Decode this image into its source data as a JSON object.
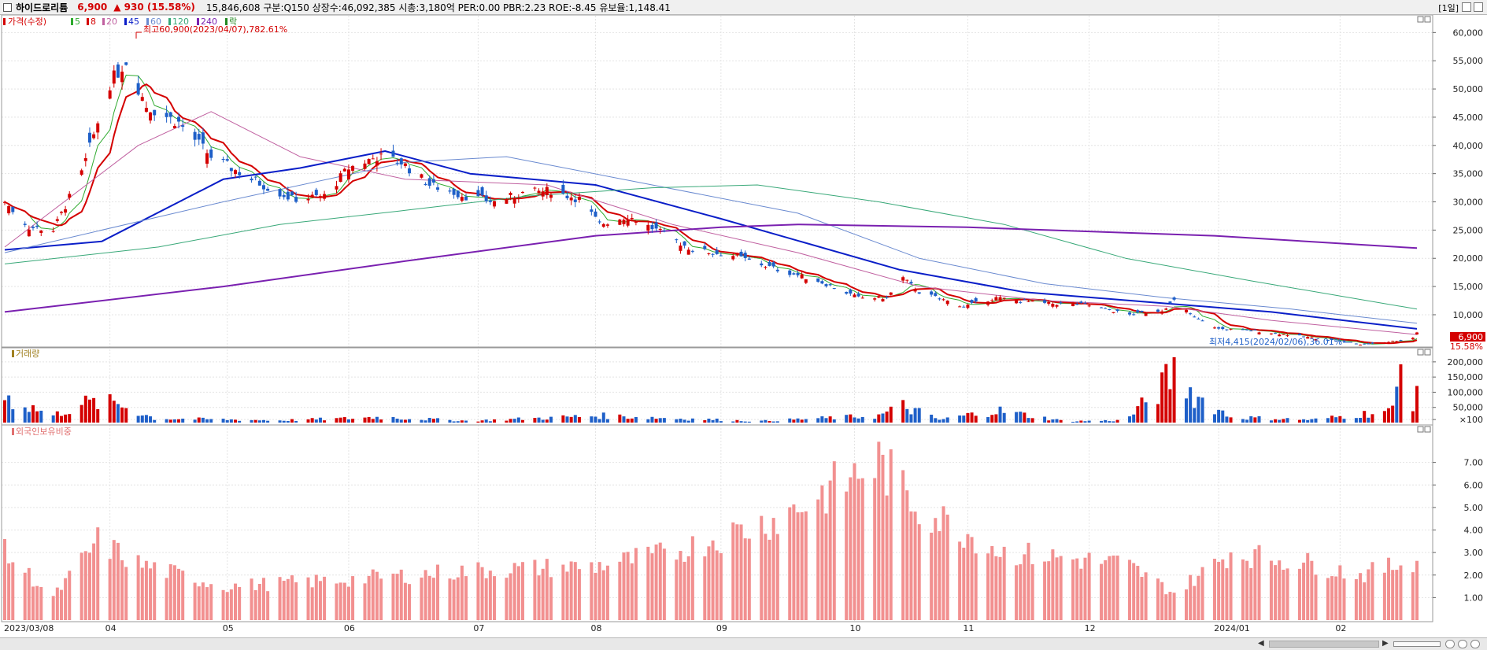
{
  "header": {
    "stock_name": "하이드로리튬",
    "price": "6,900",
    "change_arrow": "▲",
    "change": "930",
    "change_pct": "(15.58%)",
    "info": "15,846,608 구분:Q150 상장수:46,092,385 시총:3,180억 PER:0.00 PBR:2.23 ROE:-8.45 유보율:1,148.41",
    "period": "[1일]"
  },
  "colors": {
    "up": "#d40000",
    "down": "#1e5fc8",
    "ma5": "#2eaa2e",
    "ma8": "#d40000",
    "ma20": "#c060a0",
    "ma45": "#0a1ec8",
    "ma60": "#6a8ad0",
    "ma120": "#38a878",
    "ma240": "#7a20b0",
    "foreign_bar": "#f29090"
  },
  "legend": {
    "price_series": "가격(수정)",
    "ma": [
      "5",
      "8",
      "20",
      "45",
      "60",
      "120",
      "240"
    ],
    "last": "락"
  },
  "annotations": {
    "high": "최고60,900(2023/04/07),782.61%",
    "low": "최저4,415(2024/02/06),36.01%",
    "current_price": "6,900",
    "current_pct": "15.58%"
  },
  "chart_data": [
    {
      "type": "candlestick",
      "title": "가격(수정)",
      "ylim": [
        4000,
        62000
      ],
      "y_ticks": [
        "10,000",
        "15,000",
        "20,000",
        "25,000",
        "30,000",
        "35,000",
        "40,000",
        "45,000",
        "50,000",
        "55,000",
        "60,000"
      ],
      "x_labels": [
        "2023/03/08",
        "04",
        "05",
        "06",
        "07",
        "08",
        "09",
        "10",
        "11",
        "12",
        "2024/01",
        "02"
      ],
      "anchors": [
        [
          "2023-03-08",
          30000,
          "u"
        ],
        [
          "2023-03-14",
          25500,
          "d"
        ],
        [
          "2023-03-20",
          25000,
          "u"
        ],
        [
          "2023-03-27",
          35000,
          "u"
        ],
        [
          "2023-04-03",
          51000,
          "u"
        ],
        [
          "2023-04-07",
          55000,
          "u"
        ],
        [
          "2023-04-12",
          47000,
          "d"
        ],
        [
          "2023-04-20",
          44000,
          "d"
        ],
        [
          "2023-04-28",
          38000,
          "d"
        ],
        [
          "2023-05-08",
          34000,
          "d"
        ],
        [
          "2023-05-18",
          30500,
          "d"
        ],
        [
          "2023-05-26",
          31000,
          "u"
        ],
        [
          "2023-06-01",
          36000,
          "u"
        ],
        [
          "2023-06-08",
          38000,
          "u"
        ],
        [
          "2023-06-14",
          37000,
          "d"
        ],
        [
          "2023-06-21",
          33000,
          "d"
        ],
        [
          "2023-06-30",
          31000,
          "d"
        ],
        [
          "2023-07-07",
          30000,
          "u"
        ],
        [
          "2023-07-14",
          31500,
          "u"
        ],
        [
          "2023-07-21",
          32000,
          "u"
        ],
        [
          "2023-07-28",
          30500,
          "d"
        ],
        [
          "2023-08-02",
          26000,
          "d"
        ],
        [
          "2023-08-09",
          27500,
          "u"
        ],
        [
          "2023-08-16",
          25000,
          "d"
        ],
        [
          "2023-08-25",
          21500,
          "d"
        ],
        [
          "2023-09-04",
          20500,
          "d"
        ],
        [
          "2023-09-15",
          18000,
          "d"
        ],
        [
          "2023-09-25",
          16000,
          "d"
        ],
        [
          "2023-10-05",
          13000,
          "d"
        ],
        [
          "2023-10-12",
          13000,
          "u"
        ],
        [
          "2023-10-16",
          16500,
          "u"
        ],
        [
          "2023-10-20",
          14000,
          "d"
        ],
        [
          "2023-10-31",
          11500,
          "d"
        ],
        [
          "2023-11-08",
          13000,
          "u"
        ],
        [
          "2023-11-20",
          12000,
          "d"
        ],
        [
          "2023-11-30",
          11800,
          "d"
        ],
        [
          "2023-12-11",
          10000,
          "d"
        ],
        [
          "2023-12-19",
          10800,
          "u"
        ],
        [
          "2023-12-22",
          12500,
          "u"
        ],
        [
          "2023-12-27",
          9500,
          "d"
        ],
        [
          "2024-01-02",
          7500,
          "d"
        ],
        [
          "2024-01-10",
          7200,
          "d"
        ],
        [
          "2024-01-22",
          6200,
          "d"
        ],
        [
          "2024-02-02",
          5200,
          "d"
        ],
        [
          "2024-02-06",
          4700,
          "d"
        ],
        [
          "2024-02-14",
          5300,
          "u"
        ],
        [
          "2024-02-19",
          5900,
          "u"
        ],
        [
          "2024-02-20",
          6900,
          "u"
        ]
      ]
    },
    {
      "type": "line",
      "series": [
        {
          "name": "20",
          "points": [
            [
              "2023-03-08",
              22000
            ],
            [
              "2023-04-10",
              40000
            ],
            [
              "2023-04-28",
              46000
            ],
            [
              "2023-05-20",
              38000
            ],
            [
              "2023-06-15",
              34000
            ],
            [
              "2023-07-20",
              33000
            ],
            [
              "2023-08-20",
              26000
            ],
            [
              "2023-09-20",
              21000
            ],
            [
              "2023-10-20",
              15000
            ],
            [
              "2023-11-20",
              12500
            ],
            [
              "2023-12-20",
              11500
            ],
            [
              "2024-01-15",
              9000
            ],
            [
              "2024-02-20",
              6500
            ]
          ]
        },
        {
          "name": "45",
          "points": [
            [
              "2023-03-08",
              21500
            ],
            [
              "2023-04-01",
              23000
            ],
            [
              "2023-05-01",
              34000
            ],
            [
              "2023-05-20",
              36000
            ],
            [
              "2023-06-10",
              39000
            ],
            [
              "2023-07-01",
              35000
            ],
            [
              "2023-08-01",
              33000
            ],
            [
              "2023-09-01",
              27000
            ],
            [
              "2023-10-15",
              18000
            ],
            [
              "2023-11-15",
              14000
            ],
            [
              "2023-12-20",
              12000
            ],
            [
              "2024-01-15",
              10500
            ],
            [
              "2024-02-20",
              7500
            ]
          ]
        },
        {
          "name": "60",
          "points": [
            [
              "2023-03-08",
              21000
            ],
            [
              "2023-05-01",
              30000
            ],
            [
              "2023-06-15",
              37000
            ],
            [
              "2023-07-10",
              38000
            ],
            [
              "2023-08-15",
              33000
            ],
            [
              "2023-09-20",
              28000
            ],
            [
              "2023-10-20",
              20000
            ],
            [
              "2023-11-20",
              15500
            ],
            [
              "2023-12-20",
              13000
            ],
            [
              "2024-01-20",
              11000
            ],
            [
              "2024-02-20",
              8500
            ]
          ]
        },
        {
          "name": "120",
          "points": [
            [
              "2023-03-08",
              19000
            ],
            [
              "2023-04-15",
              22000
            ],
            [
              "2023-05-15",
              26000
            ],
            [
              "2023-06-15",
              28500
            ],
            [
              "2023-07-15",
              31000
            ],
            [
              "2023-08-15",
              32500
            ],
            [
              "2023-09-10",
              33000
            ],
            [
              "2023-10-10",
              30000
            ],
            [
              "2023-11-10",
              26000
            ],
            [
              "2023-12-10",
              20000
            ],
            [
              "2024-01-10",
              16000
            ],
            [
              "2024-02-20",
              11000
            ]
          ]
        },
        {
          "name": "240",
          "points": [
            [
              "2023-03-08",
              10500
            ],
            [
              "2023-05-01",
              15000
            ],
            [
              "2023-06-15",
              19500
            ],
            [
              "2023-08-01",
              24000
            ],
            [
              "2023-09-01",
              25500
            ],
            [
              "2023-09-20",
              26000
            ],
            [
              "2023-11-01",
              25500
            ],
            [
              "2024-01-01",
              24000
            ],
            [
              "2024-02-20",
              21800
            ]
          ]
        }
      ]
    },
    {
      "type": "bar",
      "title": "거래량",
      "ylim": [
        0,
        210000
      ],
      "y_ticks": [
        "×100",
        "50,000",
        "100,000",
        "150,000",
        "200,000"
      ],
      "anchors": [
        [
          "2023-03-08",
          95000
        ],
        [
          "2023-03-20",
          25000
        ],
        [
          "2023-03-27",
          70000
        ],
        [
          "2023-04-05",
          70000
        ],
        [
          "2023-04-14",
          15000
        ],
        [
          "2023-05-15",
          8000
        ],
        [
          "2023-06-01",
          15000
        ],
        [
          "2023-06-08",
          20000
        ],
        [
          "2023-07-01",
          6000
        ],
        [
          "2023-08-02",
          25000
        ],
        [
          "2023-09-10",
          5000
        ],
        [
          "2023-10-10",
          25000
        ],
        [
          "2023-10-16",
          60000
        ],
        [
          "2023-10-25",
          10000
        ],
        [
          "2023-11-08",
          45000
        ],
        [
          "2023-11-25",
          5000
        ],
        [
          "2023-12-10",
          8000
        ],
        [
          "2023-12-19",
          130000
        ],
        [
          "2023-12-22",
          185000
        ],
        [
          "2023-12-27",
          100000
        ],
        [
          "2024-01-05",
          20000
        ],
        [
          "2024-01-25",
          10000
        ],
        [
          "2024-02-06",
          30000
        ],
        [
          "2024-02-14",
          45000
        ],
        [
          "2024-02-16",
          200000
        ],
        [
          "2024-02-19",
          80000
        ],
        [
          "2024-02-20",
          150000
        ]
      ]
    },
    {
      "type": "bar",
      "title": "외국인보유비중",
      "ylim": [
        0,
        8
      ],
      "y_ticks": [
        "1.00",
        "2.00",
        "3.00",
        "4.00",
        "5.00",
        "6.00",
        "7.00"
      ],
      "anchors": [
        [
          "2023-03-08",
          3.0
        ],
        [
          "2023-03-20",
          1.0
        ],
        [
          "2023-03-31",
          3.5
        ],
        [
          "2023-04-10",
          2.5
        ],
        [
          "2023-05-01",
          1.5
        ],
        [
          "2023-06-01",
          1.8
        ],
        [
          "2023-07-01",
          2.2
        ],
        [
          "2023-08-01",
          2.4
        ],
        [
          "2023-08-20",
          3.0
        ],
        [
          "2023-09-15",
          4.5
        ],
        [
          "2023-10-10",
          7.0
        ],
        [
          "2023-10-20",
          5.0
        ],
        [
          "2023-11-10",
          3.0
        ],
        [
          "2023-12-10",
          2.5
        ],
        [
          "2023-12-22",
          1.2
        ],
        [
          "2024-01-05",
          3.0
        ],
        [
          "2024-01-25",
          2.5
        ],
        [
          "2024-02-06",
          2.0
        ],
        [
          "2024-02-20",
          2.7
        ]
      ]
    }
  ]
}
